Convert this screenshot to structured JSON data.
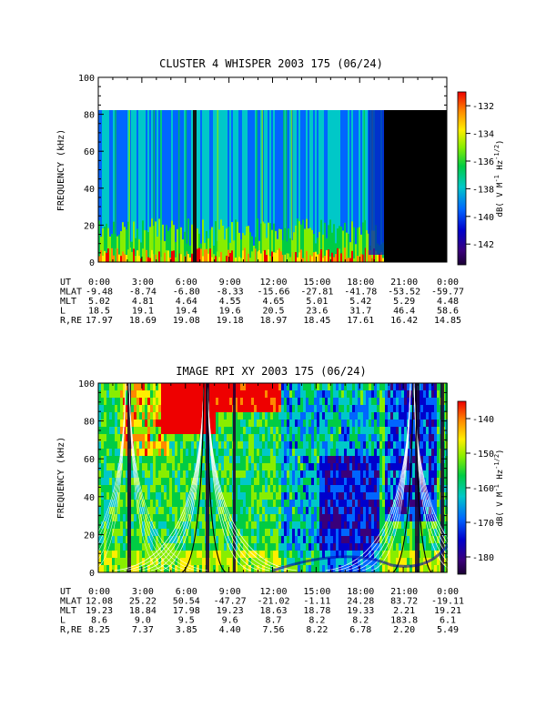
{
  "panels": [
    {
      "title": "CLUSTER 4 WHISPER 2003 175 (06/24)",
      "ylabel": "FREQUENCY (kHz)",
      "ylim": [
        0,
        100
      ],
      "yticks": [
        "0",
        "20",
        "40",
        "60",
        "80",
        "100"
      ],
      "colorbar": {
        "label": "dB( V M^-1 Hz^-1/2)",
        "range": [
          -143.5,
          -131
        ],
        "ticks": [
          "-132",
          "-134",
          "-136",
          "-138",
          "-140",
          "-142"
        ]
      },
      "ephemeris": {
        "rows": [
          {
            "label": "UT",
            "values": [
              "0:00",
              "3:00",
              "6:00",
              "9:00",
              "12:00",
              "15:00",
              "18:00",
              "21:00",
              "0:00"
            ]
          },
          {
            "label": "MLAT",
            "values": [
              "-9.48",
              "-8.74",
              "-6.80",
              "-8.33",
              "-15.66",
              "-27.81",
              "-41.78",
              "-53.52",
              "-59.77"
            ]
          },
          {
            "label": "MLT",
            "values": [
              "5.02",
              "4.81",
              "4.64",
              "4.55",
              "4.65",
              "5.01",
              "5.42",
              "5.29",
              "4.48"
            ]
          },
          {
            "label": "L",
            "values": [
              "18.5",
              "19.1",
              "19.4",
              "19.6",
              "20.5",
              "23.6",
              "31.7",
              "46.4",
              "58.6"
            ]
          },
          {
            "label": "R,RE",
            "values": [
              "17.97",
              "18.69",
              "19.08",
              "19.18",
              "18.97",
              "18.45",
              "17.61",
              "16.42",
              "14.85"
            ]
          }
        ]
      }
    },
    {
      "title": "IMAGE RPI XY 2003 175 (06/24)",
      "ylabel": "FREQUENCY (kHz)",
      "ylim": [
        0,
        100
      ],
      "yticks": [
        "0",
        "20",
        "40",
        "60",
        "80",
        "100"
      ],
      "colorbar": {
        "label": "dB( V M^-1 Hz^-1/2)",
        "range": [
          -185,
          -135
        ],
        "ticks": [
          "-140",
          "-150",
          "-160",
          "-170",
          "-180"
        ]
      },
      "ephemeris": {
        "rows": [
          {
            "label": "UT",
            "values": [
              "0:00",
              "3:00",
              "6:00",
              "9:00",
              "12:00",
              "15:00",
              "18:00",
              "21:00",
              "0:00"
            ]
          },
          {
            "label": "MLAT",
            "values": [
              "12.08",
              "25.22",
              "50.54",
              "-47.27",
              "-21.02",
              "-1.11",
              "24.28",
              "83.72",
              "-19.11"
            ]
          },
          {
            "label": "MLT",
            "values": [
              "19.23",
              "18.84",
              "17.98",
              "19.23",
              "18.63",
              "18.78",
              "19.33",
              "2.21",
              "19.21"
            ]
          },
          {
            "label": "L",
            "values": [
              "8.6",
              "9.0",
              "9.5",
              "9.6",
              "8.7",
              "8.2",
              "8.2",
              "183.8",
              "6.1"
            ]
          },
          {
            "label": "R,RE",
            "values": [
              "8.25",
              "7.37",
              "3.85",
              "4.40",
              "7.56",
              "8.22",
              "6.78",
              "2.20",
              "5.49"
            ]
          }
        ]
      }
    }
  ],
  "chart_data": [
    {
      "type": "heatmap",
      "title": "CLUSTER 4 WHISPER 2003 175 (06/24)",
      "ylabel": "FREQUENCY (kHz)",
      "xlabel": "UT",
      "x_ticks": [
        "0:00",
        "3:00",
        "6:00",
        "9:00",
        "12:00",
        "15:00",
        "18:00",
        "21:00",
        "0:00"
      ],
      "ylim": [
        0,
        100
      ],
      "data_extent_khz": [
        0,
        80
      ],
      "no_data_interval_ut": [
        "19:30",
        "24:00"
      ],
      "colorbar_range_db": [
        -143.5,
        -131
      ]
    },
    {
      "type": "heatmap",
      "title": "IMAGE RPI XY 2003 175 (06/24)",
      "ylabel": "FREQUENCY (kHz)",
      "xlabel": "UT",
      "x_ticks": [
        "0:00",
        "3:00",
        "6:00",
        "9:00",
        "12:00",
        "15:00",
        "18:00",
        "21:00",
        "0:00"
      ],
      "ylim": [
        0,
        100
      ],
      "colorbar_range_db": [
        -185,
        -135
      ],
      "overlay_curves": "white plasma-frequency traces, black cyclotron-frequency peaks near 6:45 and 20:45 UT"
    }
  ],
  "colors": {
    "axis": "#000000",
    "background": "#ffffff",
    "nodata": "#000000"
  }
}
